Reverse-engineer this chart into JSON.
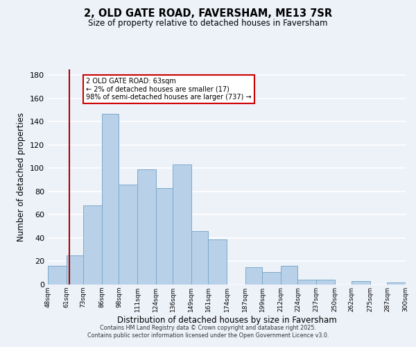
{
  "title": "2, OLD GATE ROAD, FAVERSHAM, ME13 7SR",
  "subtitle": "Size of property relative to detached houses in Faversham",
  "xlabel": "Distribution of detached houses by size in Faversham",
  "ylabel": "Number of detached properties",
  "bar_left_edges": [
    48,
    61,
    73,
    86,
    98,
    111,
    124,
    136,
    149,
    161,
    174,
    187,
    199,
    212,
    224,
    237,
    250,
    262,
    275,
    287
  ],
  "bar_widths": [
    13,
    12,
    13,
    12,
    13,
    13,
    12,
    13,
    12,
    13,
    13,
    12,
    13,
    12,
    13,
    13,
    12,
    13,
    12,
    13
  ],
  "bar_heights": [
    16,
    25,
    68,
    147,
    86,
    99,
    83,
    103,
    46,
    39,
    0,
    15,
    11,
    16,
    4,
    4,
    0,
    3,
    0,
    2
  ],
  "bar_color": "#b8d0e8",
  "bar_edge_color": "#7aaacb",
  "property_line_x": 63,
  "property_line_color": "#aa0000",
  "annotation_text_line1": "2 OLD GATE ROAD: 63sqm",
  "annotation_text_line2": "← 2% of detached houses are smaller (17)",
  "annotation_text_line3": "98% of semi-detached houses are larger (737) →",
  "annotation_box_color": "#ffffff",
  "annotation_box_edge_color": "#cc0000",
  "tick_labels": [
    "48sqm",
    "61sqm",
    "73sqm",
    "86sqm",
    "98sqm",
    "111sqm",
    "124sqm",
    "136sqm",
    "149sqm",
    "161sqm",
    "174sqm",
    "187sqm",
    "199sqm",
    "212sqm",
    "224sqm",
    "237sqm",
    "250sqm",
    "262sqm",
    "275sqm",
    "287sqm",
    "300sqm"
  ],
  "ylim": [
    0,
    185
  ],
  "yticks": [
    0,
    20,
    40,
    60,
    80,
    100,
    120,
    140,
    160,
    180
  ],
  "background_color": "#edf2f9",
  "grid_color": "#ffffff",
  "footer_line1": "Contains HM Land Registry data © Crown copyright and database right 2025.",
  "footer_line2": "Contains public sector information licensed under the Open Government Licence v3.0."
}
